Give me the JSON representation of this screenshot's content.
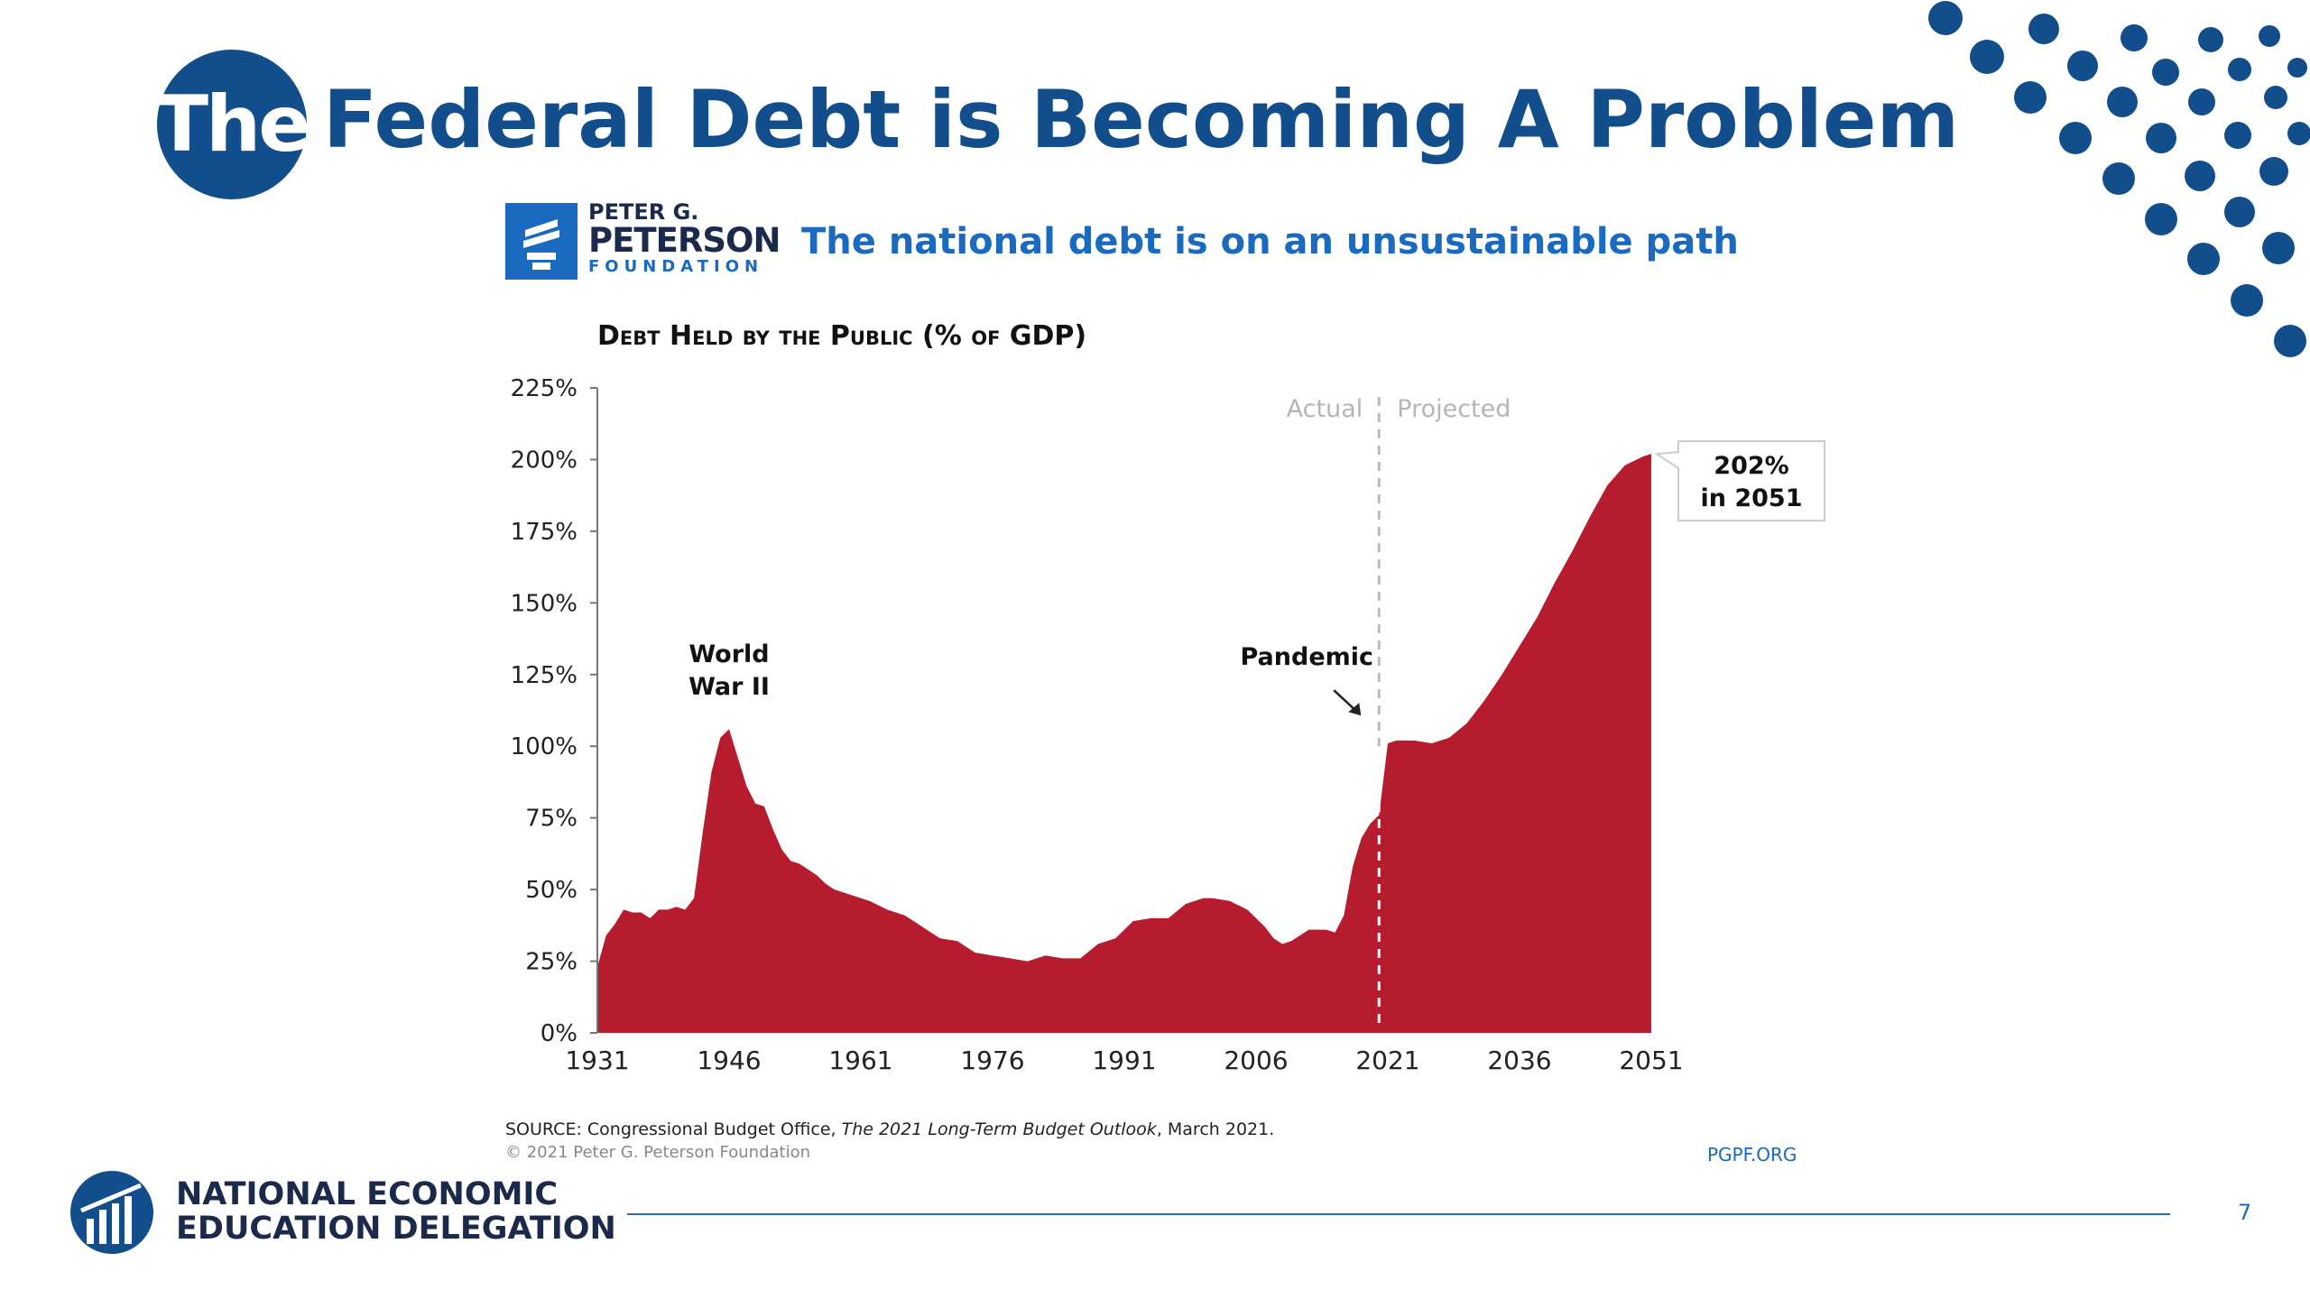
{
  "slide": {
    "title_badge": "The",
    "title": "Federal Debt is Becoming A Problem",
    "page_number": "7",
    "accent_color": "#124e8c"
  },
  "peterson": {
    "name_line1": "PETER G.",
    "name_line2": "PETERSON",
    "name_line3": "FOUNDATION",
    "headline": "The national debt is on an unsustainable path",
    "source_prefix": "SOURCE: Congressional Budget Office, ",
    "source_title": "The 2021 Long-Term Budget Outlook",
    "source_suffix": ", March 2021.",
    "copyright": "© 2021 Peter G. Peterson Foundation",
    "link": "PGPF.ORG"
  },
  "footer": {
    "org_line1": "NATIONAL ECONOMIC",
    "org_line2": "EDUCATION DELEGATION"
  },
  "chart_data": {
    "type": "area",
    "title": "Debt Held by the Public (% of GDP)",
    "ylim": [
      0,
      225
    ],
    "yticks": [
      0,
      25,
      50,
      75,
      100,
      125,
      150,
      175,
      200,
      225
    ],
    "ytick_labels": [
      "0%",
      "25%",
      "50%",
      "75%",
      "100%",
      "125%",
      "150%",
      "175%",
      "200%",
      "225%"
    ],
    "xlim": [
      1931,
      2051
    ],
    "xticks": [
      1931,
      1946,
      1961,
      1976,
      1991,
      2006,
      2021,
      2036,
      2051
    ],
    "xtick_labels": [
      "1931",
      "1946",
      "1961",
      "1976",
      "1991",
      "2006",
      "2021",
      "2036",
      "2051"
    ],
    "fill_color": "#b71c2e",
    "divider_year": 2020,
    "divider_labels": {
      "left": "Actual",
      "right": "Projected"
    },
    "annotations": [
      {
        "label_line1": "World",
        "label_line2": "War II",
        "x": 1946,
        "y": 106
      },
      {
        "label_line1": "Pandemic",
        "label_line2": "",
        "x": 2020,
        "y": 100
      },
      {
        "label_line1": "202%",
        "label_line2": "in 2051",
        "x": 2051,
        "y": 202
      }
    ],
    "series": [
      {
        "x": [
          1931,
          1932,
          1933,
          1934,
          1935,
          1936,
          1937,
          1938,
          1939,
          1940,
          1941,
          1942,
          1943,
          1944,
          1945,
          1946,
          1947,
          1948,
          1949,
          1950,
          1951,
          1952,
          1953,
          1954,
          1955,
          1956,
          1957,
          1958,
          1959,
          1960,
          1962,
          1964,
          1966,
          1968,
          1970,
          1972,
          1974,
          1976,
          1978,
          1980,
          1982,
          1984,
          1986,
          1988,
          1990,
          1992,
          1994,
          1996,
          1998,
          2000,
          2001,
          2003,
          2005,
          2007,
          2008,
          2009,
          2010,
          2011,
          2012,
          2013,
          2014,
          2015,
          2016,
          2017,
          2018,
          2019,
          2020,
          2021,
          2022,
          2024,
          2026,
          2028,
          2030,
          2032,
          2034,
          2036,
          2038,
          2040,
          2042,
          2044,
          2046,
          2048,
          2050,
          2051
        ],
        "values": [
          23,
          34,
          38,
          43,
          42,
          42,
          40,
          43,
          43,
          44,
          43,
          47,
          70,
          91,
          103,
          106,
          96,
          86,
          80,
          79,
          71,
          64,
          60,
          59,
          57,
          55,
          52,
          50,
          49,
          48,
          46,
          43,
          41,
          37,
          33,
          32,
          28,
          27,
          26,
          25,
          27,
          26,
          26,
          31,
          33,
          39,
          40,
          40,
          45,
          47,
          47,
          46,
          43,
          37,
          33,
          31,
          32,
          34,
          36,
          36,
          36,
          35,
          41,
          58,
          68,
          73,
          76,
          101,
          102,
          102,
          101,
          103,
          108,
          116,
          125,
          135,
          145,
          157,
          168,
          180,
          191,
          198,
          201,
          202
        ]
      }
    ]
  }
}
